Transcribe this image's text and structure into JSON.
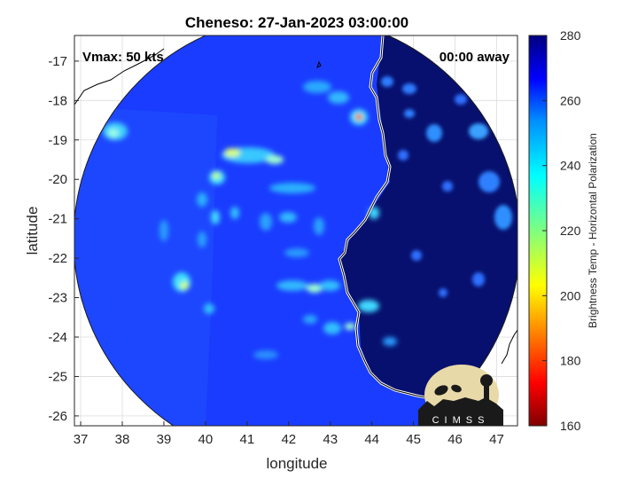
{
  "title": "Cheneso: 27-Jan-2023 03:00:00",
  "vmax_label": "Vmax: 50 kts",
  "away_label": "00:00 away",
  "axes": {
    "xlabel": "longitude",
    "ylabel": "latitude",
    "x_ticks": [
      "37",
      "38",
      "39",
      "40",
      "41",
      "42",
      "43",
      "44",
      "45",
      "46",
      "47"
    ],
    "y_ticks": [
      "-17",
      "-18",
      "-19",
      "-20",
      "-21",
      "-22",
      "-23",
      "-24",
      "-25",
      "-26"
    ],
    "xlim": [
      36.85,
      47.5
    ],
    "ylim": [
      -26.25,
      -16.35
    ],
    "grid": true
  },
  "colorbar": {
    "label": "Brightness Temp - Horizontal Polarization",
    "ticks": [
      "280",
      "260",
      "240",
      "220",
      "200",
      "180",
      "160"
    ],
    "range": [
      160,
      280
    ],
    "colormap": "jet"
  },
  "logo_text": "CIMSS",
  "colors": {
    "swath_background": "#1a3cff",
    "land": "#07106e",
    "coastline": "#ffffff",
    "outline": "#000000"
  }
}
